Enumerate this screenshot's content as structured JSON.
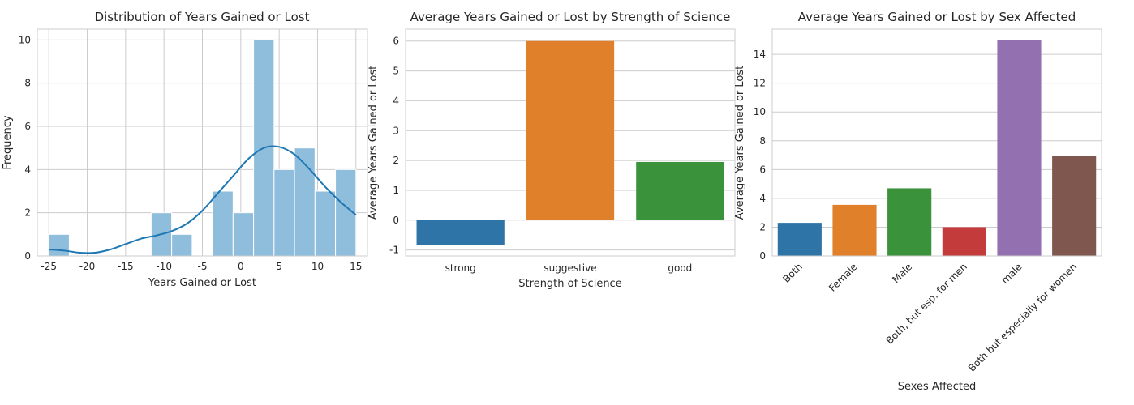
{
  "chart_data": [
    {
      "type": "bar",
      "subtype": "histogram",
      "title": "Distribution of Years Gained or Lost",
      "xlabel": "Years Gained or Lost",
      "ylabel": "Frequency",
      "xlim": [
        -26.5,
        16.5
      ],
      "ylim": [
        0,
        10.5
      ],
      "x_ticks": [
        -25,
        -20,
        -15,
        -10,
        -5,
        0,
        5,
        10,
        15
      ],
      "y_ticks": [
        0,
        2,
        4,
        6,
        8,
        10
      ],
      "bin_edges": [
        -25,
        -22.333,
        -19.667,
        -17,
        -14.333,
        -11.667,
        -9,
        -6.333,
        -3.667,
        -1,
        1.667,
        4.333,
        7,
        9.667,
        12.333,
        15
      ],
      "counts": [
        1,
        0,
        0,
        0,
        0,
        2,
        1,
        0,
        3,
        2,
        10,
        4,
        5,
        3,
        4
      ],
      "bar_color": "#8fbedd",
      "kde": {
        "x": [
          -25,
          -23,
          -21,
          -19,
          -17,
          -15,
          -13,
          -11,
          -9,
          -7,
          -5,
          -3,
          -1,
          1,
          3,
          5,
          7,
          9,
          11,
          13,
          15
        ],
        "y": [
          0.3,
          0.25,
          0.15,
          0.15,
          0.3,
          0.55,
          0.8,
          0.95,
          1.15,
          1.5,
          2.1,
          2.9,
          3.7,
          4.5,
          5.0,
          5.05,
          4.7,
          4.0,
          3.2,
          2.5,
          1.9
        ],
        "color": "#1f77b4"
      },
      "grid": true
    },
    {
      "type": "bar",
      "title": "Average Years Gained or Lost by Strength of Science",
      "xlabel": "Strength of Science",
      "ylabel": "Average Years Gained or Lost",
      "categories": [
        "strong",
        "suggestive",
        "good"
      ],
      "values": [
        -0.83,
        6.0,
        1.95
      ],
      "colors": [
        "#2f74a6",
        "#e1802b",
        "#3a923a"
      ],
      "ylim": [
        -1.2,
        6.4
      ],
      "y_ticks": [
        -1,
        0,
        1,
        2,
        3,
        4,
        5,
        6
      ],
      "grid": true
    },
    {
      "type": "bar",
      "title": "Average Years Gained or Lost by Sex Affected",
      "xlabel": "Sexes Affected",
      "ylabel": "Average Years Gained or Lost",
      "categories": [
        "Both",
        "Female",
        "Male",
        "Both, but esp. for men",
        "male",
        "Both but especially for women"
      ],
      "values": [
        2.3,
        3.55,
        4.7,
        2.0,
        15.0,
        6.95
      ],
      "colors": [
        "#2f74a6",
        "#e1802b",
        "#3a923a",
        "#c43b3c",
        "#9371b1",
        "#7f574e"
      ],
      "ylim": [
        0,
        15.75
      ],
      "y_ticks": [
        0,
        2,
        4,
        6,
        8,
        10,
        12,
        14
      ],
      "x_tick_rotation": -45,
      "grid": true
    }
  ]
}
